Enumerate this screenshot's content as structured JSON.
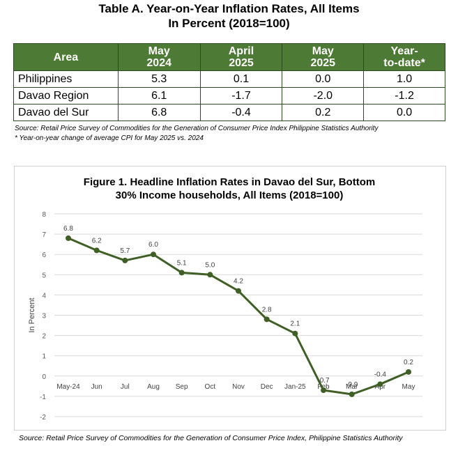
{
  "table": {
    "title_line1": "Table A. Year-on-Year Inflation Rates, All Items",
    "title_line2": "In Percent (2018=100)",
    "headers": [
      {
        "line1": "Area",
        "line2": ""
      },
      {
        "line1": "May",
        "line2": "2024"
      },
      {
        "line1": "April",
        "line2": "2025"
      },
      {
        "line1": "May",
        "line2": "2025"
      },
      {
        "line1": "Year-",
        "line2": "to-date*"
      }
    ],
    "rows": [
      {
        "area": "Philippines",
        "may2024": "5.3",
        "apr2025": "0.1",
        "may2025": "0.0",
        "ytd": "1.0"
      },
      {
        "area": "Davao Region",
        "may2024": "6.1",
        "apr2025": "-1.7",
        "may2025": "-2.0",
        "ytd": "-1.2"
      },
      {
        "area": "Davao del Sur",
        "may2024": "6.8",
        "apr2025": "-0.4",
        "may2025": "0.2",
        "ytd": "0.0"
      }
    ],
    "source": "Source: Retail Price Survey of Commodities for the Generation of Consumer Price Index Philippine Statistics Authority",
    "footnote": "* Year-on-year change of average CPI for May 2025 vs. 2024"
  },
  "figure": {
    "source": "Source: Retail Price Survey of Commodities for the Generation of Consumer Price Index, Philippine Statistics Authority"
  },
  "chart_data": {
    "type": "line",
    "title": "Figure 1. Headline Inflation Rates in Davao del Sur, Bottom 30% Income households, All Items (2018=100)",
    "title_line1": "Figure 1. Headline Inflation Rates in Davao del Sur, Bottom",
    "title_line2": "30% Income households, All Items (2018=100)",
    "ylabel": "In Percent",
    "xlabel": "",
    "ylim": [
      -2,
      8
    ],
    "yticks": [
      -2,
      -1,
      0,
      1,
      2,
      3,
      4,
      5,
      6,
      7,
      8
    ],
    "grid": true,
    "categories": [
      "May-24",
      "Jun",
      "Jul",
      "Aug",
      "Sep",
      "Oct",
      "Nov",
      "Dec",
      "Jan-25",
      "Feb",
      "Mar",
      "Apr",
      "May"
    ],
    "values": [
      6.8,
      6.2,
      5.7,
      6.0,
      5.1,
      5.0,
      4.2,
      2.8,
      2.1,
      -0.7,
      -0.9,
      -0.4,
      0.2
    ],
    "data_labels": [
      "6.8",
      "6.2",
      "5.7",
      "6.0",
      "5.1",
      "5.0",
      "4.2",
      "2.8",
      "2.1",
      "-0.7",
      "-0.9",
      "-0.4",
      "0.2"
    ],
    "line_color": "#3f5f25",
    "grid_color": "#d9d9d9"
  }
}
